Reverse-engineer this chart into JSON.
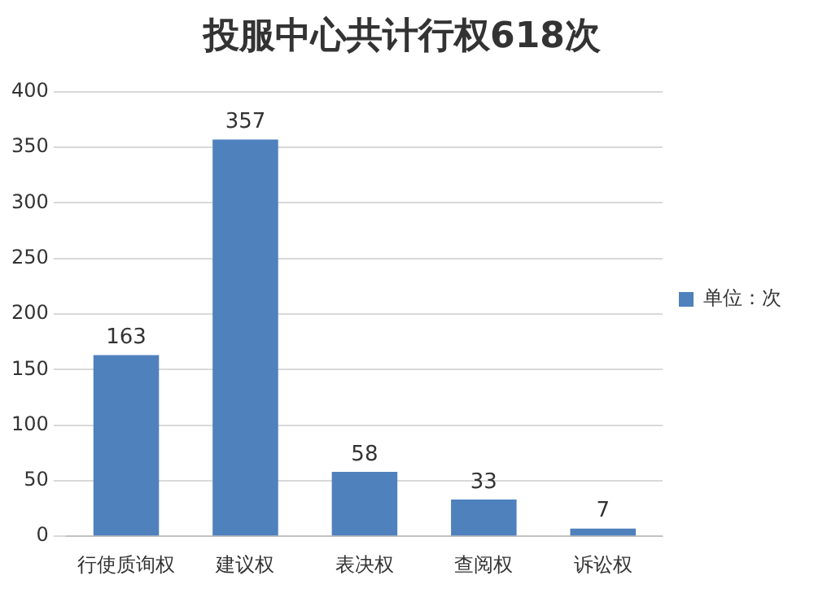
{
  "chart_data": {
    "type": "bar",
    "title": "投服中心共计行权618次",
    "categories": [
      "行使质询权",
      "建议权",
      "表决权",
      "查阅权",
      "诉讼权"
    ],
    "series": [
      {
        "name": "单位：次",
        "color": "#4f81bd",
        "values": [
          163,
          357,
          58,
          33,
          7
        ]
      }
    ],
    "ylim": [
      0,
      400
    ],
    "yticks": [
      0,
      50,
      100,
      150,
      200,
      250,
      300,
      350,
      400
    ],
    "grid": "y",
    "legend": "right",
    "data_labels": true
  }
}
